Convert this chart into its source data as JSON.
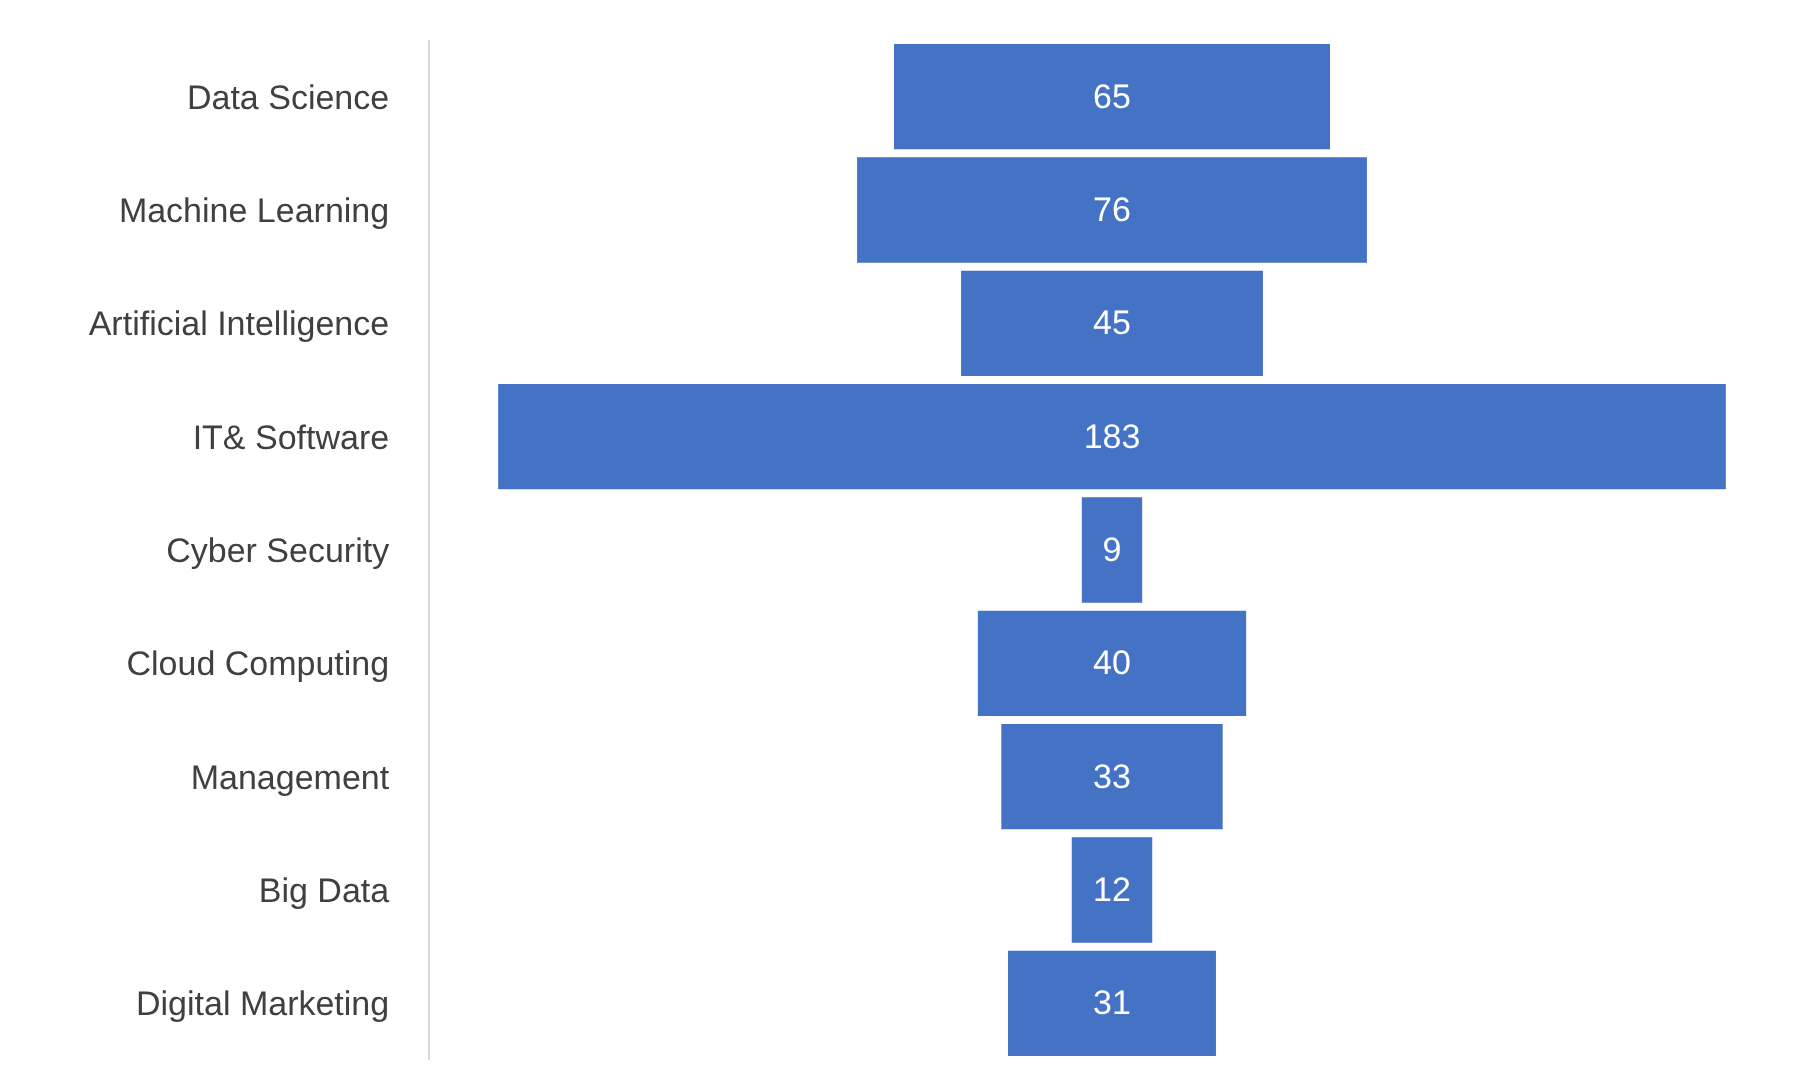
{
  "chart_data": {
    "type": "other",
    "categories": [
      "Data Science",
      "Machine Learning",
      "Artificial Intelligence",
      "IT& Software",
      "Cyber Security",
      "Cloud Computing",
      "Management",
      "Big Data",
      "Digital Marketing"
    ],
    "values": [
      65,
      76,
      45,
      183,
      9,
      40,
      33,
      12,
      31
    ],
    "color": "#4472c4",
    "data_labels": true
  }
}
